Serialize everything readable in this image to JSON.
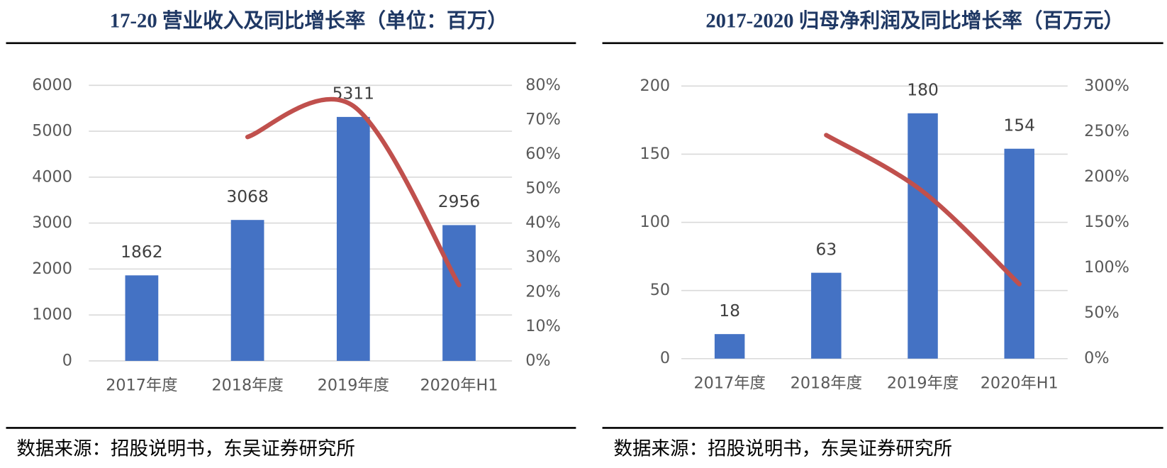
{
  "chart_data": [
    {
      "type": "bar",
      "title": "17-20 营业收入及同比增长率（单位：百万）",
      "categories": [
        "2017年度",
        "2018年度",
        "2019年度",
        "2020年H1"
      ],
      "series": [
        {
          "type": "bar",
          "color": "#4472c4",
          "values": [
            1862,
            3068,
            5311,
            2956
          ]
        },
        {
          "type": "line",
          "color": "#c0504d",
          "axis": "y2",
          "values": [
            null,
            65,
            74,
            22
          ]
        }
      ],
      "ylim": [
        0,
        6000
      ],
      "yticks": [
        0,
        1000,
        2000,
        3000,
        4000,
        5000,
        6000
      ],
      "y2lim": [
        0,
        80
      ],
      "y2ticks": [
        {
          "value": 0,
          "label": "0%"
        },
        {
          "value": 10,
          "label": "10%"
        },
        {
          "value": 20,
          "label": "20%"
        },
        {
          "value": 30,
          "label": "30%"
        },
        {
          "value": 40,
          "label": "40%"
        },
        {
          "value": 50,
          "label": "50%"
        },
        {
          "value": 60,
          "label": "60%"
        },
        {
          "value": 70,
          "label": "70%"
        },
        {
          "value": 80,
          "label": "80%"
        }
      ],
      "grid": true,
      "source": "数据来源：招股说明书，东吴证券研究所"
    },
    {
      "type": "bar",
      "title": "2017-2020 归母净利润及同比增长率（百万元）",
      "categories": [
        "2017年度",
        "2018年度",
        "2019年度",
        "2020年H1"
      ],
      "series": [
        {
          "type": "bar",
          "color": "#4472c4",
          "values": [
            18,
            63,
            180,
            154
          ]
        },
        {
          "type": "line",
          "color": "#c0504d",
          "axis": "y2",
          "values": [
            null,
            246,
            184,
            82
          ]
        }
      ],
      "ylim": [
        0,
        200
      ],
      "yticks": [
        0,
        50,
        100,
        150,
        200
      ],
      "y2lim": [
        0,
        300
      ],
      "y2ticks": [
        {
          "value": 0,
          "label": "0%"
        },
        {
          "value": 50,
          "label": "50%"
        },
        {
          "value": 100,
          "label": "100%"
        },
        {
          "value": 150,
          "label": "150%"
        },
        {
          "value": 200,
          "label": "200%"
        },
        {
          "value": 250,
          "label": "250%"
        },
        {
          "value": 300,
          "label": "300%"
        }
      ],
      "grid": true,
      "source": "数据来源：招股说明书，东吴证券研究所"
    }
  ]
}
